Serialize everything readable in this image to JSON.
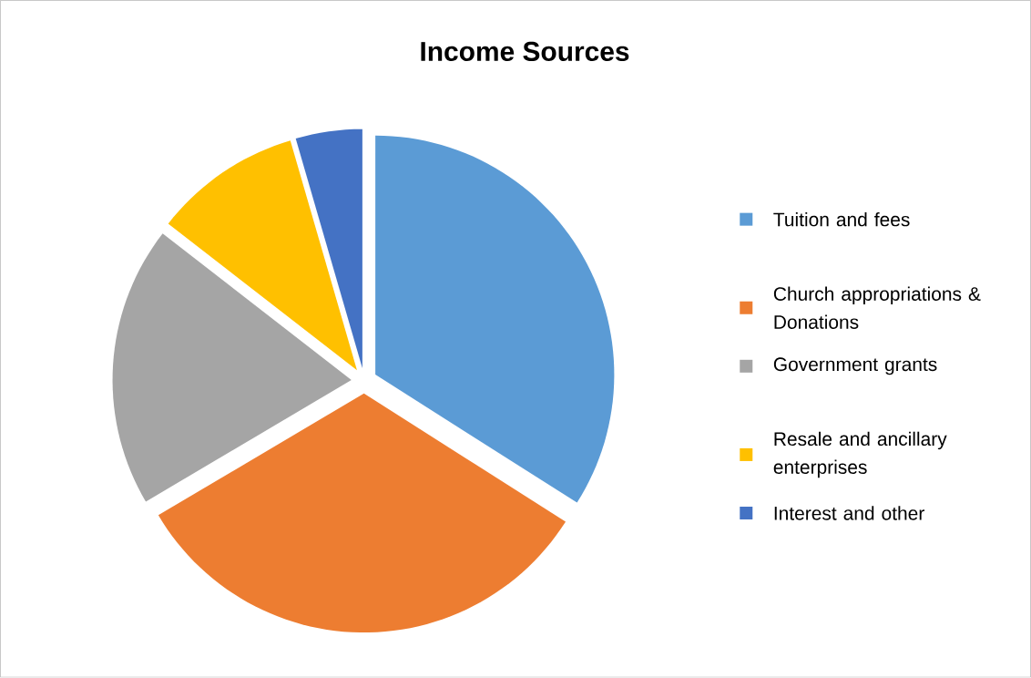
{
  "chart_data": {
    "type": "pie",
    "title": "Income Sources",
    "categories": [
      "Tuition and fees",
      "Church appropriations & Donations",
      "Government grants",
      "Resale and ancillary enterprises",
      "Interest and other"
    ],
    "values": [
      34,
      32.5,
      19,
      10,
      4.5
    ],
    "colors": [
      "#5b9bd5",
      "#ed7d31",
      "#a5a5a5",
      "#ffc000",
      "#4472c4"
    ],
    "legend": "right"
  }
}
